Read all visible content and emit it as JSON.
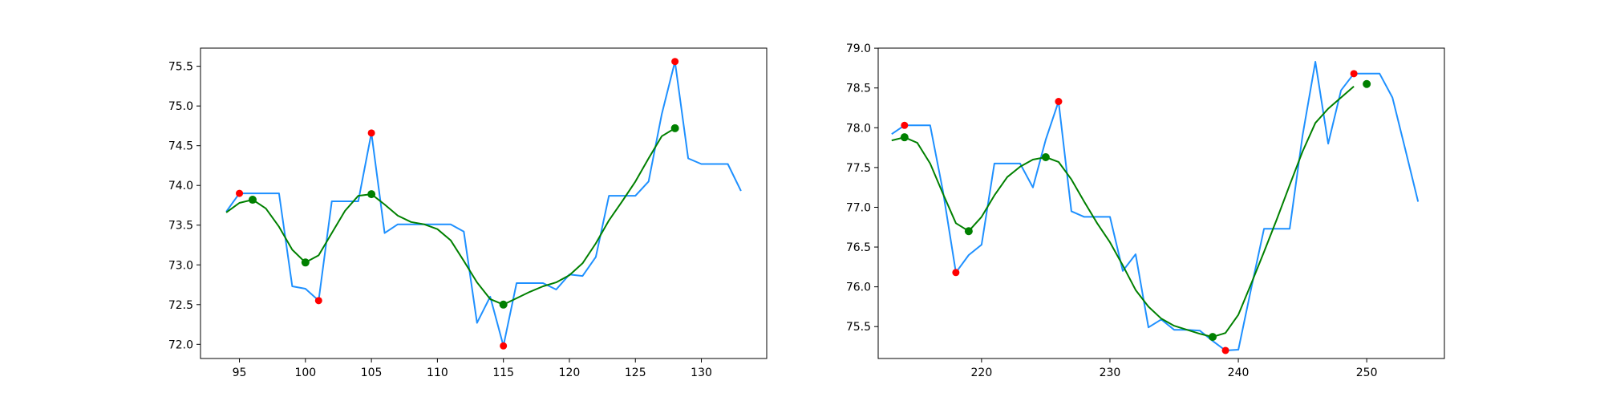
{
  "chart_data": [
    {
      "type": "line",
      "grid": false,
      "xlim": [
        92.05,
        134.95
      ],
      "ylim": [
        71.8215,
        75.7285
      ],
      "xticks": [
        95,
        100,
        105,
        110,
        115,
        120,
        125,
        130
      ],
      "yticks": [
        72.0,
        72.5,
        73.0,
        73.5,
        74.0,
        74.5,
        75.0,
        75.5
      ],
      "colors": {
        "raw": "#1e90ff",
        "smooth": "#008000",
        "max": "#ff0000",
        "min": "#ff0000",
        "smooth_extrema": "#008000"
      },
      "series": [
        {
          "role": "raw",
          "x": [
            94,
            95,
            96,
            97,
            98,
            99,
            100,
            101,
            102,
            103,
            104,
            105,
            106,
            107,
            108,
            109,
            110,
            111,
            112,
            113,
            114,
            115,
            116,
            117,
            118,
            119,
            120,
            121,
            122,
            123,
            124,
            125,
            126,
            127,
            128,
            129,
            130,
            131,
            132,
            133
          ],
          "y": [
            73.67,
            73.9,
            73.9,
            73.9,
            73.9,
            72.73,
            72.7,
            72.55,
            73.8,
            73.8,
            73.8,
            74.66,
            73.4,
            73.51,
            73.51,
            73.51,
            73.51,
            73.51,
            73.42,
            72.27,
            72.6,
            71.98,
            72.77,
            72.77,
            72.77,
            72.69,
            72.88,
            72.86,
            73.1,
            73.87,
            73.87,
            73.87,
            74.05,
            74.9,
            75.56,
            74.34,
            74.27,
            74.27,
            74.27,
            73.93
          ]
        },
        {
          "role": "smooth",
          "x": [
            94,
            95,
            96,
            97,
            98,
            99,
            100,
            101,
            102,
            103,
            104,
            105,
            106,
            107,
            108,
            109,
            110,
            111,
            112,
            113,
            114,
            115,
            116,
            117,
            118,
            119,
            120,
            121,
            122,
            123,
            124,
            125,
            126,
            127,
            128
          ],
          "y": [
            73.66,
            73.78,
            73.82,
            73.71,
            73.48,
            73.19,
            73.03,
            73.12,
            73.4,
            73.68,
            73.87,
            73.89,
            73.76,
            73.62,
            73.54,
            73.51,
            73.45,
            73.31,
            73.05,
            72.78,
            72.57,
            72.5,
            72.58,
            72.66,
            72.73,
            72.78,
            72.87,
            73.02,
            73.27,
            73.56,
            73.8,
            74.05,
            74.34,
            74.62,
            74.72
          ]
        }
      ],
      "markers": {
        "raw_extrema": [
          {
            "x": 95,
            "y": 73.9
          },
          {
            "x": 101,
            "y": 72.55
          },
          {
            "x": 105,
            "y": 74.66
          },
          {
            "x": 115,
            "y": 71.98
          },
          {
            "x": 128,
            "y": 75.56
          }
        ],
        "smooth_extrema": [
          {
            "x": 96,
            "y": 73.82
          },
          {
            "x": 100,
            "y": 73.03
          },
          {
            "x": 105,
            "y": 73.89
          },
          {
            "x": 115,
            "y": 72.5
          },
          {
            "x": 128,
            "y": 74.72
          }
        ]
      }
    },
    {
      "type": "line",
      "grid": false,
      "xlim": [
        211.95,
        256.05
      ],
      "ylim": [
        75.099,
        79.001
      ],
      "xticks": [
        220,
        230,
        240,
        250
      ],
      "yticks": [
        75.5,
        76.0,
        76.5,
        77.0,
        77.5,
        78.0,
        78.5,
        79.0
      ],
      "colors": {
        "raw": "#1e90ff",
        "smooth": "#008000",
        "max": "#ff0000",
        "min": "#ff0000",
        "smooth_extrema": "#008000"
      },
      "series": [
        {
          "role": "raw",
          "x": [
            213,
            214,
            215,
            216,
            217,
            218,
            219,
            220,
            221,
            222,
            223,
            224,
            225,
            226,
            227,
            228,
            229,
            230,
            231,
            232,
            233,
            234,
            235,
            236,
            237,
            238,
            239,
            240,
            241,
            242,
            243,
            244,
            245,
            246,
            247,
            248,
            249,
            250,
            251,
            252,
            253,
            254
          ],
          "y": [
            77.92,
            78.03,
            78.03,
            78.03,
            77.2,
            76.18,
            76.4,
            76.53,
            77.55,
            77.55,
            77.55,
            77.25,
            77.85,
            78.33,
            76.95,
            76.88,
            76.88,
            76.88,
            76.2,
            76.41,
            75.49,
            75.59,
            75.46,
            75.46,
            75.45,
            75.32,
            75.2,
            75.21,
            75.98,
            76.73,
            76.73,
            76.73,
            77.9,
            78.83,
            77.8,
            78.47,
            78.68,
            78.68,
            78.68,
            78.38,
            77.73,
            77.07
          ]
        },
        {
          "role": "smooth",
          "x": [
            213,
            214,
            215,
            216,
            217,
            218,
            219,
            220,
            221,
            222,
            223,
            224,
            225,
            226,
            227,
            228,
            229,
            230,
            231,
            232,
            233,
            234,
            235,
            236,
            237,
            238,
            239,
            240,
            241,
            242,
            243,
            244,
            245,
            246,
            247,
            248,
            249
          ],
          "y": [
            77.84,
            77.88,
            77.81,
            77.55,
            77.17,
            76.8,
            76.7,
            76.88,
            77.15,
            77.38,
            77.51,
            77.6,
            77.63,
            77.57,
            77.35,
            77.07,
            76.8,
            76.56,
            76.27,
            75.96,
            75.75,
            75.6,
            75.51,
            75.46,
            75.41,
            75.37,
            75.42,
            75.65,
            76.04,
            76.44,
            76.85,
            77.28,
            77.7,
            78.06,
            78.24,
            78.38,
            78.52
          ]
        }
      ],
      "markers": {
        "raw_extrema": [
          {
            "x": 214,
            "y": 78.03
          },
          {
            "x": 218,
            "y": 76.18
          },
          {
            "x": 226,
            "y": 78.33
          },
          {
            "x": 239,
            "y": 75.2
          },
          {
            "x": 249,
            "y": 78.68
          }
        ],
        "smooth_extrema": [
          {
            "x": 214,
            "y": 77.88
          },
          {
            "x": 219,
            "y": 76.7
          },
          {
            "x": 225,
            "y": 77.63
          },
          {
            "x": 238,
            "y": 75.37
          },
          {
            "x": 250,
            "y": 78.55
          }
        ]
      }
    }
  ]
}
